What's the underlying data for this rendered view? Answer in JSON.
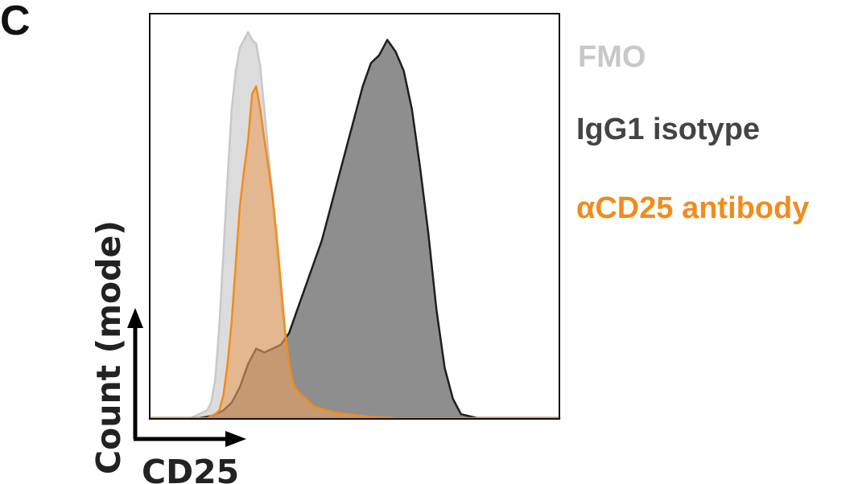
{
  "panel_label": "C",
  "chart_data": {
    "type": "area",
    "title": "",
    "xlabel": "CD25",
    "ylabel": "Count (mode)",
    "xlim": [
      0,
      100
    ],
    "ylim": [
      0,
      100
    ],
    "grid": false,
    "legend": "right",
    "series": [
      {
        "name": "FMO",
        "color": "#c8c8c8",
        "fill": "#d6d6d6",
        "x": [
          0,
          10,
          12,
          14,
          15,
          16,
          17,
          18,
          19,
          20,
          21,
          22,
          23,
          24,
          25,
          26,
          27,
          28,
          29,
          30,
          31,
          32,
          33,
          34,
          35,
          36,
          37,
          38,
          40,
          42,
          45,
          50,
          100
        ],
        "y": [
          0,
          0,
          1,
          2,
          4,
          10,
          24,
          43,
          62,
          80,
          90,
          96,
          98,
          100,
          98,
          97,
          91,
          80,
          68,
          58,
          44,
          32,
          20,
          12,
          7,
          4,
          2,
          1,
          0.6,
          0.3,
          0.1,
          0,
          0
        ]
      },
      {
        "name": "IgG1 isotype",
        "color": "#1e1e1e",
        "fill": "#8e8e8e",
        "x": [
          0,
          12,
          15,
          18,
          20,
          22,
          24,
          26,
          28,
          30,
          32,
          34,
          36,
          38,
          40,
          42,
          44,
          46,
          48,
          50,
          52,
          54,
          56,
          58,
          60,
          62,
          64,
          66,
          68,
          70,
          72,
          74,
          76,
          80,
          100
        ],
        "y": [
          0,
          0,
          0.5,
          2,
          4,
          8,
          14,
          18,
          17,
          18,
          19,
          22,
          28,
          34,
          40,
          46,
          54,
          62,
          70,
          78,
          86,
          92,
          94,
          98,
          95,
          90,
          80,
          65,
          48,
          28,
          13,
          5,
          1,
          0,
          0
        ]
      },
      {
        "name": "αCD25 antibody",
        "color": "#f08c1e",
        "fill": "#e6a060",
        "x": [
          0,
          14,
          16,
          17,
          18,
          19,
          20,
          21,
          22,
          23,
          24,
          25,
          26,
          27,
          28,
          29,
          30,
          31,
          32,
          33,
          34,
          35,
          36,
          38,
          40,
          45,
          50,
          55,
          60,
          100
        ],
        "y": [
          0,
          0,
          1,
          2,
          6,
          14,
          25,
          40,
          55,
          64,
          72,
          84,
          86,
          80,
          72,
          65,
          57,
          47,
          35,
          23,
          14,
          9,
          7,
          5,
          3,
          1.5,
          0.8,
          0.2,
          0,
          0
        ]
      }
    ]
  }
}
